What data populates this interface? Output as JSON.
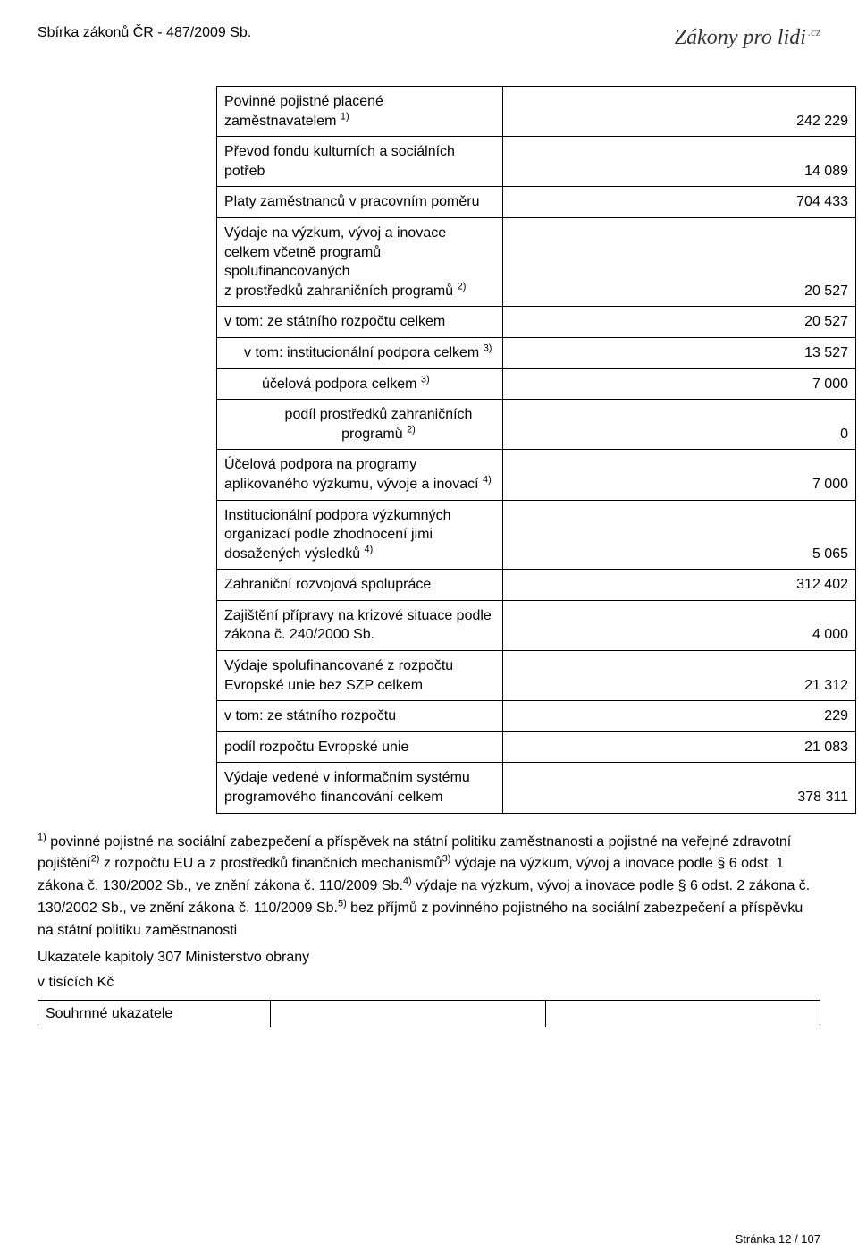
{
  "header": {
    "left": "Sbírka zákonů ČR - 487/2009 Sb.",
    "right_brand": "Zákony pro lidi",
    "right_suffix": ".cz"
  },
  "rows": [
    {
      "label_html": "Povinné pojistné placené zaměstnavatelem <sup>1)</sup>",
      "value": "242 229",
      "indent": 0
    },
    {
      "label_html": "Převod fondu kulturních a sociálních potřeb",
      "value": "14 089",
      "indent": 0
    },
    {
      "label_html": "Platy zaměstnanců v pracovním poměru",
      "value": "704 433",
      "indent": 0
    },
    {
      "label_html": "Výdaje na výzkum, vývoj a inovace celkem včetně programů spolufinancovaných<br>z prostředků zahraničních programů <sup>2)</sup>",
      "value": "20 527",
      "indent": 0
    },
    {
      "label_html": "v tom: ze státního rozpočtu celkem",
      "value": "20 527",
      "indent": 0
    },
    {
      "label_html": "v tom: institucionální podpora celkem <sup>3)</sup>",
      "value": "13 527",
      "indent": 1
    },
    {
      "label_html": "účelová podpora celkem <sup>3)</sup>",
      "value": "7 000",
      "indent": 2
    },
    {
      "label_html": "podíl prostředků zahraničních programů <sup>2)</sup>",
      "value": "0",
      "indent": 2,
      "center": true
    },
    {
      "label_html": "Účelová podpora na programy aplikovaného výzkumu, vývoje a inovací <sup>4)</sup>",
      "value": "7 000",
      "indent": 0
    },
    {
      "label_html": "Institucionální podpora výzkumných organizací podle zhodnocení jimi dosažených výsledků <sup>4)</sup>",
      "value": "5 065",
      "indent": 0
    },
    {
      "label_html": "Zahraniční rozvojová spolupráce",
      "value": "312 402",
      "indent": 0
    },
    {
      "label_html": "Zajištění přípravy na krizové situace podle zákona č. 240/2000 Sb.",
      "value": "4 000",
      "indent": 0
    },
    {
      "label_html": "Výdaje spolufinancované z rozpočtu Evropské unie bez SZP celkem",
      "value": "21 312",
      "indent": 0
    },
    {
      "label_html": "v tom: ze státního rozpočtu",
      "value": "229",
      "indent": 0
    },
    {
      "label_html": "podíl rozpočtu Evropské unie",
      "value": "21 083",
      "indent": 0
    },
    {
      "label_html": "Výdaje vedené v informačním systému programového financování celkem",
      "value": "378 311",
      "indent": 0
    }
  ],
  "footnotes_html": "<sup>1)</sup> povinné pojistné na sociální zabezpečení a příspěvek na státní politiku zaměstnanosti a pojistné na veřejné zdravotní pojištění<sup>2)</sup> z rozpočtu EU a z prostředků finančních mechanismů<sup>3)</sup> výdaje na výzkum, vývoj a inovace podle § 6 odst. 1 zákona č. 130/2002 Sb., ve znění zákona č. 110/2009 Sb.<sup>4)</sup> výdaje na výzkum, vývoj a inovace podle § 6 odst. 2 zákona č. 130/2002 Sb., ve znění zákona č. 110/2009 Sb.<sup>5)</sup> bez příjmů z povinného pojistného na sociální zabezpečení a příspěvku na státní politiku zaměstnanosti",
  "caption": "Ukazatele kapitoly 307 Ministerstvo obrany",
  "unit": "v tisících Kč",
  "footer_row_label": "Souhrnné ukazatele",
  "pagenum": "Stránka 12 / 107"
}
